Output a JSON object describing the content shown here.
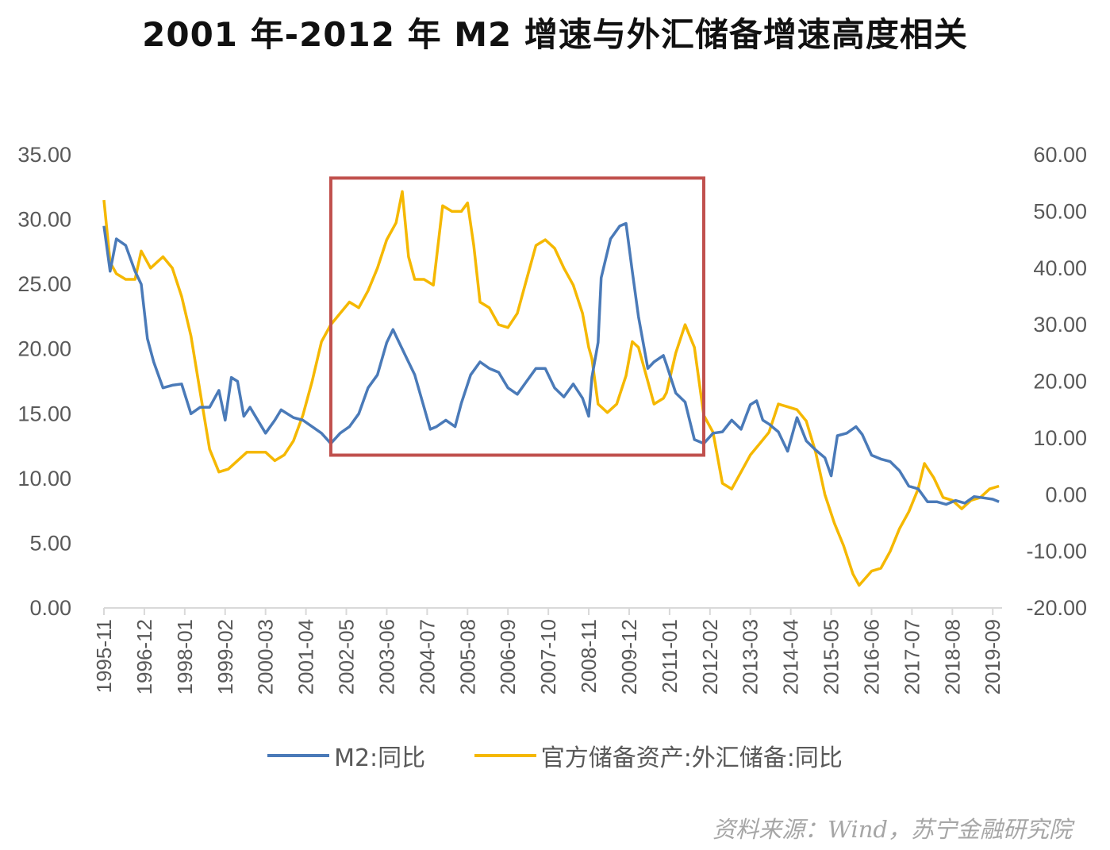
{
  "chart_data": {
    "type": "line",
    "title": "2001 年-2012 年 M2 增速与外汇储备增速高度相关",
    "source": "资料来源：Wind，苏宁金融研究院",
    "colors": {
      "m2": "#4a7ab8",
      "fx": "#f5b800",
      "box": "#c0504d"
    },
    "y_left": {
      "ylim": [
        0,
        35
      ],
      "ticks": [
        "0.00",
        "5.00",
        "10.00",
        "15.00",
        "20.00",
        "25.00",
        "30.00",
        "35.00"
      ]
    },
    "y_right": {
      "ylim": [
        -20,
        60
      ],
      "ticks": [
        "-20.00",
        "-10.00",
        "0.00",
        "10.00",
        "20.00",
        "30.00",
        "40.00",
        "50.00",
        "60.00"
      ]
    },
    "x_range": [
      "1995-11",
      "2019-12"
    ],
    "x_ticks": [
      "1995-11",
      "1996-12",
      "1998-01",
      "1999-02",
      "2000-03",
      "2001-04",
      "2002-05",
      "2003-06",
      "2004-07",
      "2005-08",
      "2006-09",
      "2007-10",
      "2008-11",
      "2009-12",
      "2011-01",
      "2012-02",
      "2013-03",
      "2014-04",
      "2015-05",
      "2016-06",
      "2017-07",
      "2018-08",
      "2019-09"
    ],
    "highlight": {
      "x": [
        "2001-12",
        "2011-12"
      ],
      "y_left": [
        11.8,
        33.2
      ]
    },
    "series": [
      {
        "name": "M2:同比",
        "axis": "left",
        "points": [
          [
            "1995-11",
            29.5
          ],
          [
            "1996-01",
            26.0
          ],
          [
            "1996-03",
            28.5
          ],
          [
            "1996-06",
            28.0
          ],
          [
            "1996-09",
            26.0
          ],
          [
            "1996-11",
            25.0
          ],
          [
            "1997-01",
            20.8
          ],
          [
            "1997-03",
            19.0
          ],
          [
            "1997-06",
            17.0
          ],
          [
            "1997-09",
            17.2
          ],
          [
            "1997-12",
            17.3
          ],
          [
            "1998-03",
            15.0
          ],
          [
            "1998-06",
            15.5
          ],
          [
            "1998-09",
            15.5
          ],
          [
            "1998-12",
            16.8
          ],
          [
            "1999-02",
            14.5
          ],
          [
            "1999-04",
            17.8
          ],
          [
            "1999-06",
            17.5
          ],
          [
            "1999-08",
            14.8
          ],
          [
            "1999-10",
            15.5
          ],
          [
            "1999-12",
            14.7
          ],
          [
            "2000-03",
            13.5
          ],
          [
            "2000-06",
            14.5
          ],
          [
            "2000-08",
            15.3
          ],
          [
            "2000-12",
            14.7
          ],
          [
            "2001-03",
            14.5
          ],
          [
            "2001-06",
            14.0
          ],
          [
            "2001-09",
            13.5
          ],
          [
            "2001-12",
            12.7
          ],
          [
            "2002-03",
            13.5
          ],
          [
            "2002-06",
            14.0
          ],
          [
            "2002-09",
            15.0
          ],
          [
            "2002-12",
            17.0
          ],
          [
            "2003-03",
            18.0
          ],
          [
            "2003-06",
            20.5
          ],
          [
            "2003-08",
            21.5
          ],
          [
            "2003-10",
            20.5
          ],
          [
            "2003-12",
            19.5
          ],
          [
            "2004-03",
            18.0
          ],
          [
            "2004-06",
            15.5
          ],
          [
            "2004-08",
            13.8
          ],
          [
            "2004-10",
            14.0
          ],
          [
            "2005-01",
            14.5
          ],
          [
            "2005-04",
            14.0
          ],
          [
            "2005-06",
            15.8
          ],
          [
            "2005-09",
            18.0
          ],
          [
            "2005-12",
            19.0
          ],
          [
            "2006-03",
            18.5
          ],
          [
            "2006-06",
            18.2
          ],
          [
            "2006-09",
            17.0
          ],
          [
            "2006-12",
            16.5
          ],
          [
            "2007-03",
            17.5
          ],
          [
            "2007-06",
            18.5
          ],
          [
            "2007-09",
            18.5
          ],
          [
            "2007-12",
            17.0
          ],
          [
            "2008-03",
            16.3
          ],
          [
            "2008-06",
            17.3
          ],
          [
            "2008-09",
            16.2
          ],
          [
            "2008-11",
            14.8
          ],
          [
            "2008-12",
            17.8
          ],
          [
            "2009-02",
            20.5
          ],
          [
            "2009-03",
            25.5
          ],
          [
            "2009-06",
            28.5
          ],
          [
            "2009-09",
            29.5
          ],
          [
            "2009-11",
            29.7
          ],
          [
            "2010-01",
            26.0
          ],
          [
            "2010-03",
            22.5
          ],
          [
            "2010-06",
            18.5
          ],
          [
            "2010-08",
            19.0
          ],
          [
            "2010-11",
            19.5
          ],
          [
            "2010-12",
            18.8
          ],
          [
            "2011-03",
            16.6
          ],
          [
            "2011-06",
            15.9
          ],
          [
            "2011-09",
            13.0
          ],
          [
            "2011-12",
            12.7
          ],
          [
            "2012-03",
            13.5
          ],
          [
            "2012-06",
            13.6
          ],
          [
            "2012-09",
            14.5
          ],
          [
            "2012-12",
            13.8
          ],
          [
            "2013-03",
            15.7
          ],
          [
            "2013-05",
            16.0
          ],
          [
            "2013-07",
            14.5
          ],
          [
            "2013-09",
            14.2
          ],
          [
            "2013-12",
            13.6
          ],
          [
            "2014-03",
            12.1
          ],
          [
            "2014-06",
            14.7
          ],
          [
            "2014-09",
            12.9
          ],
          [
            "2014-12",
            12.2
          ],
          [
            "2015-03",
            11.6
          ],
          [
            "2015-05",
            10.2
          ],
          [
            "2015-07",
            13.3
          ],
          [
            "2015-10",
            13.5
          ],
          [
            "2016-01",
            14.0
          ],
          [
            "2016-03",
            13.4
          ],
          [
            "2016-06",
            11.8
          ],
          [
            "2016-09",
            11.5
          ],
          [
            "2016-12",
            11.3
          ],
          [
            "2017-03",
            10.6
          ],
          [
            "2017-06",
            9.4
          ],
          [
            "2017-09",
            9.2
          ],
          [
            "2017-12",
            8.2
          ],
          [
            "2018-03",
            8.2
          ],
          [
            "2018-06",
            8.0
          ],
          [
            "2018-09",
            8.3
          ],
          [
            "2018-12",
            8.1
          ],
          [
            "2019-03",
            8.6
          ],
          [
            "2019-06",
            8.5
          ],
          [
            "2019-09",
            8.4
          ],
          [
            "2019-11",
            8.2
          ]
        ]
      },
      {
        "name": "官方储备资产:外汇储备:同比",
        "axis": "right",
        "points": [
          [
            "1995-11",
            52.0
          ],
          [
            "1996-01",
            41.0
          ],
          [
            "1996-03",
            39.0
          ],
          [
            "1996-06",
            38.0
          ],
          [
            "1996-09",
            38.0
          ],
          [
            "1996-11",
            43.0
          ],
          [
            "1997-02",
            40.0
          ],
          [
            "1997-06",
            42.0
          ],
          [
            "1997-09",
            40.0
          ],
          [
            "1997-12",
            35.0
          ],
          [
            "1998-03",
            28.0
          ],
          [
            "1998-06",
            18.0
          ],
          [
            "1998-09",
            8.0
          ],
          [
            "1998-12",
            4.0
          ],
          [
            "1999-03",
            4.5
          ],
          [
            "1999-06",
            6.0
          ],
          [
            "1999-09",
            7.5
          ],
          [
            "1999-12",
            7.5
          ],
          [
            "2000-03",
            7.5
          ],
          [
            "2000-06",
            6.0
          ],
          [
            "2000-09",
            7.0
          ],
          [
            "2000-12",
            9.5
          ],
          [
            "2001-03",
            14.0
          ],
          [
            "2001-06",
            20.0
          ],
          [
            "2001-09",
            27.0
          ],
          [
            "2001-12",
            30.0
          ],
          [
            "2002-03",
            32.0
          ],
          [
            "2002-06",
            34.0
          ],
          [
            "2002-09",
            33.0
          ],
          [
            "2002-12",
            36.0
          ],
          [
            "2003-03",
            40.0
          ],
          [
            "2003-06",
            45.0
          ],
          [
            "2003-09",
            48.0
          ],
          [
            "2003-11",
            53.5
          ],
          [
            "2004-01",
            42.0
          ],
          [
            "2004-03",
            38.0
          ],
          [
            "2004-06",
            38.0
          ],
          [
            "2004-09",
            37.0
          ],
          [
            "2004-12",
            51.0
          ],
          [
            "2005-03",
            50.0
          ],
          [
            "2005-06",
            50.0
          ],
          [
            "2005-08",
            51.5
          ],
          [
            "2005-10",
            44.0
          ],
          [
            "2005-12",
            34.0
          ],
          [
            "2006-03",
            33.0
          ],
          [
            "2006-06",
            30.0
          ],
          [
            "2006-09",
            29.5
          ],
          [
            "2006-12",
            32.0
          ],
          [
            "2007-03",
            38.0
          ],
          [
            "2007-06",
            44.0
          ],
          [
            "2007-09",
            45.0
          ],
          [
            "2007-12",
            43.5
          ],
          [
            "2008-03",
            40.0
          ],
          [
            "2008-06",
            37.0
          ],
          [
            "2008-09",
            32.0
          ],
          [
            "2008-11",
            26.0
          ],
          [
            "2008-12",
            24.0
          ],
          [
            "2009-02",
            16.0
          ],
          [
            "2009-05",
            14.5
          ],
          [
            "2009-08",
            16.0
          ],
          [
            "2009-11",
            21.0
          ],
          [
            "2010-01",
            27.0
          ],
          [
            "2010-03",
            26.0
          ],
          [
            "2010-06",
            20.0
          ],
          [
            "2010-08",
            16.0
          ],
          [
            "2010-11",
            17.0
          ],
          [
            "2010-12",
            18.0
          ],
          [
            "2011-03",
            25.0
          ],
          [
            "2011-06",
            30.0
          ],
          [
            "2011-09",
            26.0
          ],
          [
            "2011-12",
            14.0
          ],
          [
            "2012-03",
            11.0
          ],
          [
            "2012-06",
            2.0
          ],
          [
            "2012-09",
            1.0
          ],
          [
            "2012-12",
            4.0
          ],
          [
            "2013-03",
            7.0
          ],
          [
            "2013-06",
            9.0
          ],
          [
            "2013-09",
            11.0
          ],
          [
            "2013-12",
            16.0
          ],
          [
            "2014-03",
            15.5
          ],
          [
            "2014-06",
            15.0
          ],
          [
            "2014-09",
            13.0
          ],
          [
            "2014-12",
            7.5
          ],
          [
            "2015-03",
            0.0
          ],
          [
            "2015-06",
            -5.0
          ],
          [
            "2015-09",
            -9.0
          ],
          [
            "2015-12",
            -14.0
          ],
          [
            "2016-02",
            -16.0
          ],
          [
            "2016-06",
            -13.5
          ],
          [
            "2016-09",
            -13.0
          ],
          [
            "2016-12",
            -10.0
          ],
          [
            "2017-03",
            -6.0
          ],
          [
            "2017-06",
            -3.0
          ],
          [
            "2017-09",
            1.0
          ],
          [
            "2017-11",
            5.5
          ],
          [
            "2018-02",
            3.0
          ],
          [
            "2018-05",
            -0.5
          ],
          [
            "2018-08",
            -1.0
          ],
          [
            "2018-11",
            -2.5
          ],
          [
            "2019-02",
            -1.0
          ],
          [
            "2019-05",
            -0.5
          ],
          [
            "2019-08",
            1.0
          ],
          [
            "2019-11",
            1.5
          ]
        ]
      }
    ]
  },
  "legend": {
    "m2_label": "M2:同比",
    "fx_label": "官方储备资产:外汇储备:同比"
  }
}
